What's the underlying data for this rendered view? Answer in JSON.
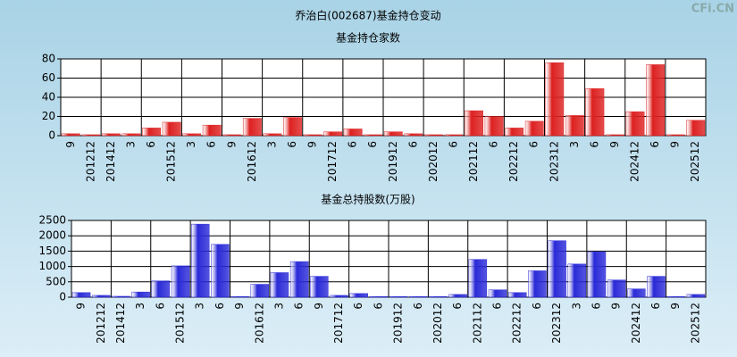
{
  "title": "乔治白(002687)基金持仓变动",
  "watermark": "CFi.CN",
  "chart_data": [
    {
      "type": "bar",
      "subtitle": "基金持仓家数",
      "color": "#dd2020",
      "categories": [
        "9",
        "201212",
        "201412",
        "3",
        "6",
        "201512",
        "3",
        "6",
        "9",
        "201612",
        "3",
        "6",
        "9",
        "201712",
        "6",
        "6",
        "201912",
        "6",
        "202012",
        "6",
        "202112",
        "6",
        "202212",
        "6",
        "202312",
        "3",
        "6",
        "9",
        "202412",
        "6",
        "9",
        "202512"
      ],
      "values": [
        2,
        1,
        2,
        2,
        8,
        14,
        2,
        11,
        1,
        18,
        2,
        19,
        1,
        4,
        7,
        1,
        4,
        2,
        1,
        1,
        26,
        20,
        8,
        15,
        76,
        21,
        49,
        1,
        25,
        74,
        1,
        16
      ],
      "ylim": [
        0,
        80
      ],
      "yticks": [
        0,
        20,
        40,
        60,
        80
      ],
      "grid": true
    },
    {
      "type": "bar",
      "subtitle": "基金总持股数(万股)",
      "color": "#2a2ad8",
      "categories": [
        "9",
        "201212",
        "201412",
        "3",
        "6",
        "201512",
        "3",
        "6",
        "9",
        "201612",
        "3",
        "6",
        "9",
        "201712",
        "6",
        "6",
        "201912",
        "6",
        "202012",
        "6",
        "202112",
        "6",
        "202212",
        "6",
        "202312",
        "3",
        "6",
        "9",
        "202412",
        "6",
        "9",
        "202512"
      ],
      "values": [
        150,
        60,
        30,
        170,
        530,
        1020,
        2380,
        1720,
        20,
        420,
        800,
        1160,
        680,
        60,
        120,
        20,
        20,
        20,
        20,
        90,
        1230,
        240,
        150,
        860,
        1840,
        1080,
        1480,
        560,
        270,
        680,
        20,
        90
      ],
      "ylim": [
        0,
        2500
      ],
      "yticks": [
        0,
        500,
        1000,
        1500,
        2000,
        2500
      ],
      "grid": true
    }
  ]
}
